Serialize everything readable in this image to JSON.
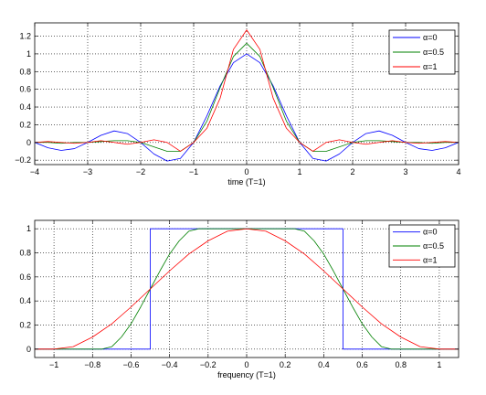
{
  "chart_data": [
    {
      "type": "line",
      "xlabel": "time (T=1)",
      "ylabel": "",
      "xlim": [
        -4,
        4
      ],
      "ylim": [
        -0.25,
        1.35
      ],
      "xticks": [
        "−4",
        "−3",
        "−2",
        "−1",
        "0",
        "1",
        "2",
        "3",
        "4"
      ],
      "xtick_values": [
        -4,
        -3,
        -2,
        -1,
        0,
        1,
        2,
        3,
        4
      ],
      "yticks": [
        "−0.2",
        "0",
        "0.2",
        "0.4",
        "0.6",
        "0.8",
        "1",
        "1.2"
      ],
      "ytick_values": [
        -0.2,
        0,
        0.2,
        0.4,
        0.6,
        0.8,
        1,
        1.2
      ],
      "grid": true,
      "legend_position": "top-right",
      "series": [
        {
          "name": "α=0",
          "color": "#0000ff",
          "x": [
            -4,
            -3.75,
            -3.5,
            -3.25,
            -3,
            -2.75,
            -2.5,
            -2.25,
            -2,
            -1.75,
            -1.5,
            -1.25,
            -1,
            -0.75,
            -0.5,
            -0.25,
            0,
            0.25,
            0.5,
            0.75,
            1,
            1.25,
            1.5,
            1.75,
            2,
            2.25,
            2.5,
            2.75,
            3,
            3.25,
            3.5,
            3.75,
            4
          ],
          "y": [
            0,
            -0.06,
            -0.09,
            -0.07,
            0,
            0.08,
            0.13,
            0.1,
            0,
            -0.13,
            -0.21,
            -0.18,
            0,
            0.3,
            0.64,
            0.9,
            1,
            0.9,
            0.64,
            0.3,
            0,
            -0.18,
            -0.21,
            -0.13,
            0,
            0.1,
            0.13,
            0.08,
            0,
            -0.07,
            -0.09,
            -0.06,
            0
          ]
        },
        {
          "name": "α=0.5",
          "color": "#008000",
          "x": [
            -4,
            -3.75,
            -3.5,
            -3.25,
            -3,
            -2.75,
            -2.5,
            -2.25,
            -2,
            -1.75,
            -1.5,
            -1.25,
            -1,
            -0.75,
            -0.5,
            -0.25,
            0,
            0.25,
            0.5,
            0.75,
            1,
            1.25,
            1.5,
            1.75,
            2,
            2.25,
            2.5,
            2.75,
            3,
            3.25,
            3.5,
            3.75,
            4
          ],
          "y": [
            0,
            0,
            -0.01,
            0,
            0,
            0.01,
            0.02,
            0.02,
            0,
            -0.05,
            -0.1,
            -0.1,
            0,
            0.24,
            0.62,
            0.97,
            1.12,
            0.97,
            0.62,
            0.24,
            0,
            -0.1,
            -0.1,
            -0.05,
            0,
            0.02,
            0.02,
            0.01,
            0,
            0,
            -0.01,
            0,
            0
          ]
        },
        {
          "name": "α=1",
          "color": "#ff0000",
          "x": [
            -4,
            -3.75,
            -3.5,
            -3.25,
            -3,
            -2.75,
            -2.5,
            -2.25,
            -2,
            -1.75,
            -1.5,
            -1.25,
            -1,
            -0.75,
            -0.5,
            -0.25,
            0,
            0.25,
            0.5,
            0.75,
            1,
            1.25,
            1.5,
            1.75,
            2,
            2.25,
            2.5,
            2.75,
            3,
            3.25,
            3.5,
            3.75,
            4
          ],
          "y": [
            0,
            0.01,
            0,
            -0.01,
            0,
            0.02,
            0,
            -0.02,
            0,
            0.03,
            0,
            -0.1,
            0,
            0.16,
            0.5,
            1.05,
            1.27,
            1.05,
            0.5,
            0.16,
            0,
            -0.1,
            0,
            0.03,
            0,
            -0.02,
            0,
            0.02,
            0,
            -0.01,
            0,
            0.01,
            0
          ]
        }
      ]
    },
    {
      "type": "line",
      "xlabel": "frequency (T=1)",
      "ylabel": "",
      "xlim": [
        -1.1,
        1.1
      ],
      "ylim": [
        -0.07,
        1.07
      ],
      "xticks": [
        "−1",
        "−0.8",
        "−0.6",
        "−0.4",
        "−0.2",
        "0",
        "0.2",
        "0.4",
        "0.6",
        "0.8",
        "1"
      ],
      "xtick_values": [
        -1,
        -0.8,
        -0.6,
        -0.4,
        -0.2,
        0,
        0.2,
        0.4,
        0.6,
        0.8,
        1
      ],
      "yticks": [
        "0",
        "0.2",
        "0.4",
        "0.6",
        "0.8",
        "1"
      ],
      "ytick_values": [
        0,
        0.2,
        0.4,
        0.6,
        0.8,
        1
      ],
      "grid": true,
      "legend_position": "top-right",
      "series": [
        {
          "name": "α=0",
          "color": "#0000ff",
          "x": [
            -1.1,
            -0.5,
            -0.5,
            0.5,
            0.5,
            1.1
          ],
          "y": [
            0,
            0,
            1,
            1,
            0,
            0
          ]
        },
        {
          "name": "α=0.5",
          "color": "#008000",
          "x": [
            -1.1,
            -0.75,
            -0.7,
            -0.65,
            -0.6,
            -0.55,
            -0.5,
            -0.45,
            -0.4,
            -0.35,
            -0.3,
            -0.25,
            0,
            0.25,
            0.3,
            0.35,
            0.4,
            0.45,
            0.5,
            0.55,
            0.6,
            0.65,
            0.7,
            0.75,
            1.1
          ],
          "y": [
            0,
            0,
            0.02,
            0.1,
            0.21,
            0.35,
            0.5,
            0.65,
            0.79,
            0.9,
            0.98,
            1,
            1,
            1,
            0.98,
            0.9,
            0.79,
            0.65,
            0.5,
            0.35,
            0.21,
            0.1,
            0.02,
            0,
            0
          ]
        },
        {
          "name": "α=1",
          "color": "#ff0000",
          "x": [
            -1.1,
            -1,
            -0.9,
            -0.8,
            -0.7,
            -0.6,
            -0.5,
            -0.4,
            -0.3,
            -0.2,
            -0.1,
            0,
            0.1,
            0.2,
            0.3,
            0.4,
            0.5,
            0.6,
            0.7,
            0.8,
            0.9,
            1,
            1.1
          ],
          "y": [
            0,
            0,
            0.02,
            0.1,
            0.21,
            0.35,
            0.5,
            0.65,
            0.79,
            0.9,
            0.98,
            1,
            0.98,
            0.9,
            0.79,
            0.65,
            0.5,
            0.35,
            0.21,
            0.1,
            0.02,
            0,
            0
          ]
        }
      ]
    }
  ]
}
